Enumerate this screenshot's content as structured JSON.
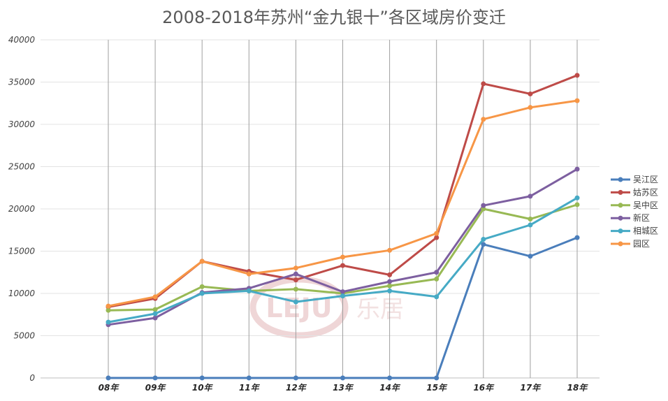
{
  "chart_data": {
    "type": "line",
    "title": "2008-2018年苏州“金九银十”各区域房价变迁",
    "xlabel": "",
    "ylabel": "",
    "categories": [
      "08年",
      "09年",
      "10年",
      "11年",
      "12年",
      "13年",
      "14年",
      "15年",
      "16年",
      "17年",
      "18年"
    ],
    "ylim": [
      0,
      40000
    ],
    "yticks": [
      0,
      5000,
      10000,
      15000,
      20000,
      25000,
      30000,
      35000,
      40000
    ],
    "grid": true,
    "legend_position": "right",
    "series": [
      {
        "name": "吴江区",
        "color": "#4a7ebb",
        "values": [
          0,
          0,
          0,
          0,
          0,
          0,
          0,
          0,
          15800,
          14400,
          16600
        ]
      },
      {
        "name": "姑苏区",
        "color": "#be4b48",
        "values": [
          8400,
          9400,
          13800,
          12600,
          11600,
          13300,
          12200,
          16600,
          34800,
          33600,
          35800
        ]
      },
      {
        "name": "吴中区",
        "color": "#98b954",
        "values": [
          8000,
          8100,
          10800,
          10300,
          10500,
          10000,
          10900,
          11700,
          20000,
          18800,
          20500
        ]
      },
      {
        "name": "新区",
        "color": "#7d5fa0",
        "values": [
          6300,
          7100,
          10100,
          10600,
          12300,
          10200,
          11400,
          12500,
          20400,
          21500,
          24700
        ]
      },
      {
        "name": "相城区",
        "color": "#46aac5",
        "values": [
          6600,
          7600,
          10000,
          10300,
          9000,
          9700,
          10300,
          9600,
          16400,
          18100,
          21300
        ]
      },
      {
        "name": "园区",
        "color": "#f79646",
        "values": [
          8500,
          9600,
          13800,
          12300,
          13000,
          14300,
          15100,
          17100,
          30600,
          32000,
          32800
        ]
      }
    ]
  },
  "watermark": {
    "text": "乐居",
    "logo_text": "LEJU"
  }
}
